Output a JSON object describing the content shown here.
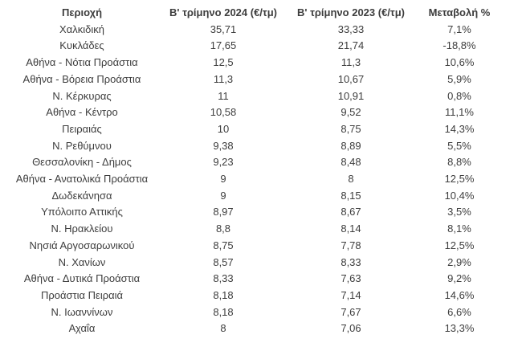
{
  "colors": {
    "background": "#ffffff",
    "text": "#3d3d3d"
  },
  "chart_data": {
    "type": "table",
    "columns": [
      "Περιοχή",
      "Β' τρίμηνο 2024 (€/τμ)",
      "Β' τρίμηνο 2023 (€/τμ)",
      "Μεταβολή %"
    ],
    "rows": [
      [
        "Χαλκιδική",
        "35,71",
        "33,33",
        "7,1%"
      ],
      [
        "Κυκλάδες",
        "17,65",
        "21,74",
        "-18,8%"
      ],
      [
        "Αθήνα - Νότια Προάστια",
        "12,5",
        "11,3",
        "10,6%"
      ],
      [
        "Αθήνα - Βόρεια Προάστια",
        "11,3",
        "10,67",
        "5,9%"
      ],
      [
        "Ν. Κέρκυρας",
        "11",
        "10,91",
        "0,8%"
      ],
      [
        "Αθήνα - Κέντρο",
        "10,58",
        "9,52",
        "11,1%"
      ],
      [
        "Πειραιάς",
        "10",
        "8,75",
        "14,3%"
      ],
      [
        "Ν. Ρεθύμνου",
        "9,38",
        "8,89",
        "5,5%"
      ],
      [
        "Θεσσαλονίκη - Δήμος",
        "9,23",
        "8,48",
        "8,8%"
      ],
      [
        "Αθήνα - Ανατολικά Προάστια",
        "9",
        "8",
        "12,5%"
      ],
      [
        "Δωδεκάνησα",
        "9",
        "8,15",
        "10,4%"
      ],
      [
        "Υπόλοιπο Αττικής",
        "8,97",
        "8,67",
        "3,5%"
      ],
      [
        "Ν. Ηρακλείου",
        "8,8",
        "8,14",
        "8,1%"
      ],
      [
        "Νησιά Αργοσαρωνικού",
        "8,75",
        "7,78",
        "12,5%"
      ],
      [
        "Ν. Χανίων",
        "8,57",
        "8,33",
        "2,9%"
      ],
      [
        "Αθήνα - Δυτικά Προάστια",
        "8,33",
        "7,63",
        "9,2%"
      ],
      [
        "Προάστια Πειραιά",
        "8,18",
        "7,14",
        "14,6%"
      ],
      [
        "Ν. Ιωαννίνων",
        "8,18",
        "7,67",
        "6,6%"
      ],
      [
        "Αχαΐα",
        "8",
        "7,06",
        "13,3%"
      ]
    ]
  }
}
